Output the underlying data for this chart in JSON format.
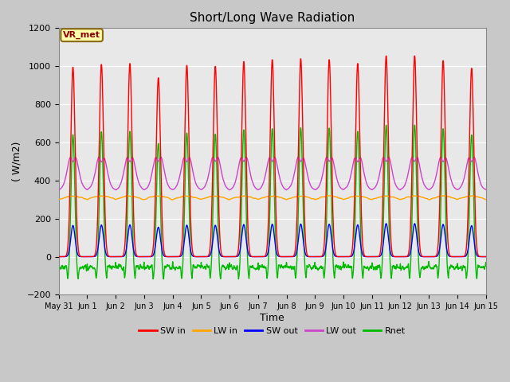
{
  "title": "Short/Long Wave Radiation",
  "xlabel": "Time",
  "ylabel": "( W/m2)",
  "ylim": [
    -200,
    1200
  ],
  "annotation": "VR_met",
  "yticks": [
    -200,
    0,
    200,
    400,
    600,
    800,
    1000,
    1200
  ],
  "lines": {
    "SW_in": {
      "color": "#ff0000",
      "label": "SW in"
    },
    "LW_in": {
      "color": "#ffa500",
      "label": "LW in"
    },
    "SW_out": {
      "color": "#0000ff",
      "label": "SW out"
    },
    "LW_out": {
      "color": "#cc44cc",
      "label": "LW out"
    },
    "Rnet": {
      "color": "#00bb00",
      "label": "Rnet"
    }
  },
  "xtick_labels": [
    "May 31",
    "Jun 1",
    "Jun 2",
    "Jun 3",
    "Jun 4",
    "Jun 5",
    "Jun 6",
    "Jun 7",
    "Jun 8",
    "Jun 9",
    "Jun 10",
    "Jun 11",
    "Jun 12",
    "Jun 13",
    "Jun 14",
    "Jun 15"
  ],
  "fig_facecolor": "#c8c8c8",
  "ax_facecolor": "#e8e8e8",
  "grid_color": "#ffffff",
  "spine_color": "#888888"
}
